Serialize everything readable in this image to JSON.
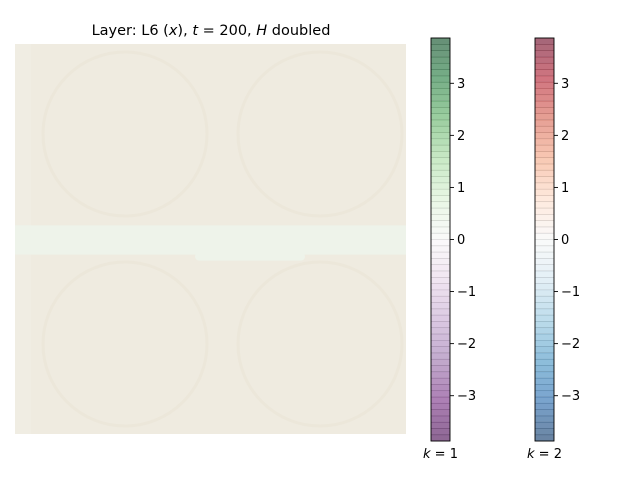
{
  "chart_data": {
    "type": "heatmap",
    "title": "Layer: L6 (x), t = 200, H doubled",
    "title_parts": {
      "prefix": "Layer: L6 (",
      "x_var": "x",
      "mid1": "), ",
      "t_var": "t",
      "eq_val": " = 200, ",
      "h_var": "H",
      "suffix": " doubled"
    },
    "heatmap": {
      "grid": [
        16,
        16
      ],
      "base_color": "#efebe0",
      "band_color": "#eef3ea",
      "band_rows_fraction": [
        0.465,
        0.54
      ],
      "faint_ring_color": "#e8dfcf",
      "axes_visible": false
    },
    "colorbars": [
      {
        "name": "k = 1",
        "label_prefix": "k",
        "label_value": "= 1",
        "cmap": "PRGn",
        "colors": [
          "#40004b",
          "#762a83",
          "#9970ab",
          "#c2a5cf",
          "#e7d4e8",
          "#f7f7f7",
          "#d9f0d3",
          "#a6dba0",
          "#5aae61",
          "#1b7837",
          "#00441b"
        ],
        "alpha": 0.6,
        "vmin": -3.87,
        "vmax": 3.87,
        "ticks": [
          3,
          2,
          1,
          0,
          -1,
          -2,
          -3
        ],
        "tick_labels": [
          "3",
          "2",
          "1",
          "0",
          "−1",
          "−2",
          "−3"
        ]
      },
      {
        "name": "k = 2",
        "label_prefix": "k",
        "label_value": "= 2",
        "cmap": "RdBu",
        "colors": [
          "#053061",
          "#2166ac",
          "#4393c3",
          "#92c5de",
          "#d1e5f0",
          "#f7f7f7",
          "#fddbc7",
          "#f4a582",
          "#d6604d",
          "#b2182b",
          "#67001f"
        ],
        "alpha": 0.6,
        "vmin": -3.87,
        "vmax": 3.87,
        "ticks": [
          3,
          2,
          1,
          0,
          -1,
          -2,
          -3
        ],
        "tick_labels": [
          "3",
          "2",
          "1",
          "0",
          "−1",
          "−2",
          "−3"
        ]
      }
    ]
  }
}
